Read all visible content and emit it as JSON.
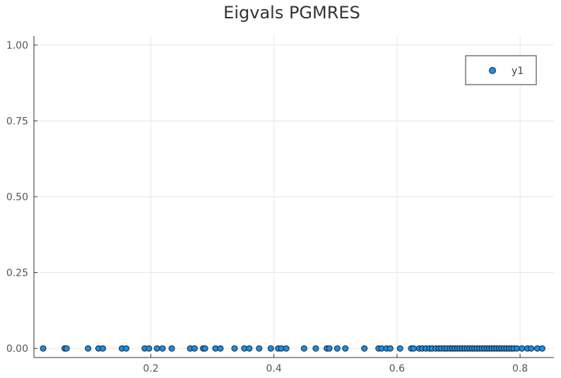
{
  "chart_data": {
    "type": "scatter",
    "title": "Eigvals PGMRES",
    "xlabel": "",
    "ylabel": "",
    "xlim": [
      0.01,
      0.855
    ],
    "ylim": [
      -0.03,
      1.03
    ],
    "x_ticks": [
      {
        "v": 0.2,
        "label": "0.2"
      },
      {
        "v": 0.4,
        "label": "0.4"
      },
      {
        "v": 0.6,
        "label": "0.6"
      },
      {
        "v": 0.8,
        "label": "0.8"
      }
    ],
    "y_ticks": [
      {
        "v": 0.0,
        "label": "0.00"
      },
      {
        "v": 0.25,
        "label": "0.25"
      },
      {
        "v": 0.5,
        "label": "0.50"
      },
      {
        "v": 0.75,
        "label": "0.75"
      },
      {
        "v": 1.0,
        "label": "1.00"
      }
    ],
    "grid": true,
    "legend": "top-right",
    "series": [
      {
        "name": "y1",
        "color": "#1a8ee8",
        "x": [
          0.025,
          0.06,
          0.063,
          0.098,
          0.115,
          0.122,
          0.153,
          0.16,
          0.19,
          0.197,
          0.21,
          0.219,
          0.234,
          0.264,
          0.271,
          0.285,
          0.288,
          0.305,
          0.313,
          0.336,
          0.352,
          0.36,
          0.376,
          0.395,
          0.407,
          0.412,
          0.42,
          0.449,
          0.468,
          0.486,
          0.49,
          0.503,
          0.516,
          0.547,
          0.57,
          0.575,
          0.583,
          0.589,
          0.605,
          0.623,
          0.627,
          0.636,
          0.641,
          0.647,
          0.653,
          0.657,
          0.663,
          0.668,
          0.672,
          0.677,
          0.681,
          0.686,
          0.69,
          0.694,
          0.698,
          0.702,
          0.706,
          0.71,
          0.714,
          0.718,
          0.722,
          0.726,
          0.73,
          0.734,
          0.738,
          0.742,
          0.746,
          0.75,
          0.754,
          0.758,
          0.762,
          0.766,
          0.77,
          0.774,
          0.778,
          0.782,
          0.786,
          0.79,
          0.795,
          0.803,
          0.812,
          0.818,
          0.828,
          0.836
        ],
        "y": [
          0,
          0,
          0,
          0,
          0,
          0,
          0,
          0,
          0,
          0,
          0,
          0,
          0,
          0,
          0,
          0,
          0,
          0,
          0,
          0,
          0,
          0,
          0,
          0,
          0,
          0,
          0,
          0,
          0,
          0,
          0,
          0,
          0,
          0,
          0,
          0,
          0,
          0,
          0,
          0,
          0,
          0,
          0,
          0,
          0,
          0,
          0,
          0,
          0,
          0,
          0,
          0,
          0,
          0,
          0,
          0,
          0,
          0,
          0,
          0,
          0,
          0,
          0,
          0,
          0,
          0,
          0,
          0,
          0,
          0,
          0,
          0,
          0,
          0,
          0,
          0,
          0,
          0,
          0,
          0,
          0,
          0,
          0,
          0
        ]
      }
    ]
  }
}
